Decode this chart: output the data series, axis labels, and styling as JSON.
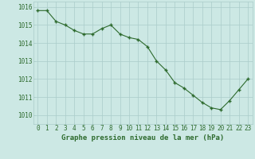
{
  "x": [
    0,
    1,
    2,
    3,
    4,
    5,
    6,
    7,
    8,
    9,
    10,
    11,
    12,
    13,
    14,
    15,
    16,
    17,
    18,
    19,
    20,
    21,
    22,
    23
  ],
  "y": [
    1015.8,
    1015.8,
    1015.2,
    1015.0,
    1014.7,
    1014.5,
    1014.5,
    1014.8,
    1015.0,
    1014.5,
    1014.3,
    1014.2,
    1013.8,
    1013.0,
    1012.5,
    1011.8,
    1011.5,
    1011.1,
    1010.7,
    1010.4,
    1010.3,
    1010.8,
    1011.4,
    1012.0
  ],
  "line_color": "#2d6a2d",
  "marker_color": "#2d6a2d",
  "bg_color": "#cce8e4",
  "grid_color": "#aaccca",
  "xlabel": "Graphe pression niveau de la mer (hPa)",
  "xlabel_color": "#2d6a2d",
  "tick_color": "#2d6a2d",
  "ylim": [
    1009.5,
    1016.3
  ],
  "yticks": [
    1010,
    1011,
    1012,
    1013,
    1014,
    1015,
    1016
  ],
  "xlim": [
    -0.5,
    23.5
  ],
  "figsize": [
    3.2,
    2.0
  ],
  "dpi": 100
}
